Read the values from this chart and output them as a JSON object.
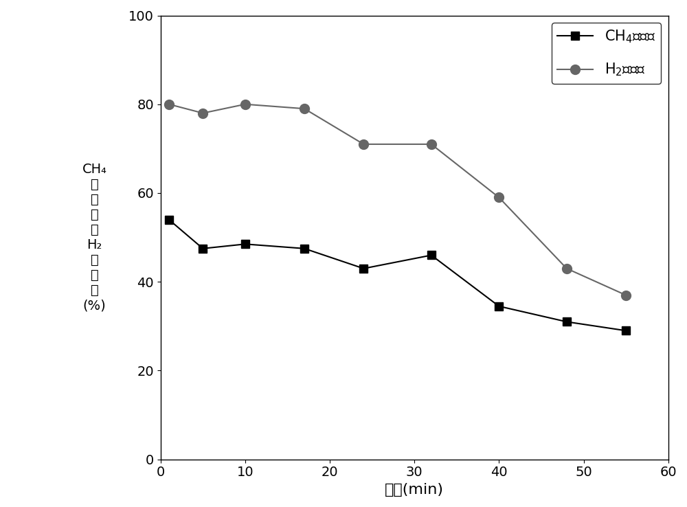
{
  "ch4_x": [
    1,
    5,
    10,
    17,
    24,
    32,
    40,
    48,
    55
  ],
  "ch4_y": [
    54,
    47.5,
    48.5,
    47.5,
    43,
    46,
    34.5,
    31,
    29
  ],
  "h2_x": [
    1,
    5,
    10,
    17,
    24,
    32,
    40,
    48,
    55
  ],
  "h2_y": [
    80,
    78,
    80,
    79,
    71,
    71,
    59,
    43,
    37
  ],
  "ch4_color": "#000000",
  "h2_color": "#666666",
  "legend_ch4_label": "CH$_4$转化率",
  "legend_h2_label": "H$_2$选择性",
  "xlabel": "时间(min)",
  "ylabel_lines": [
    "CH₄",
    "转",
    "化",
    "率",
    "或",
    "H₂",
    "选",
    "择",
    "性",
    "(%)"
  ],
  "xlim": [
    0,
    60
  ],
  "ylim": [
    0,
    100
  ],
  "xticks": [
    0,
    10,
    20,
    30,
    40,
    50,
    60
  ],
  "yticks": [
    0,
    20,
    40,
    60,
    80,
    100
  ],
  "line_width": 1.5,
  "marker_size_square": 9,
  "marker_size_circle": 10,
  "font_size_axis": 16,
  "font_size_tick": 14,
  "font_size_legend": 15,
  "font_size_ylabel": 14
}
